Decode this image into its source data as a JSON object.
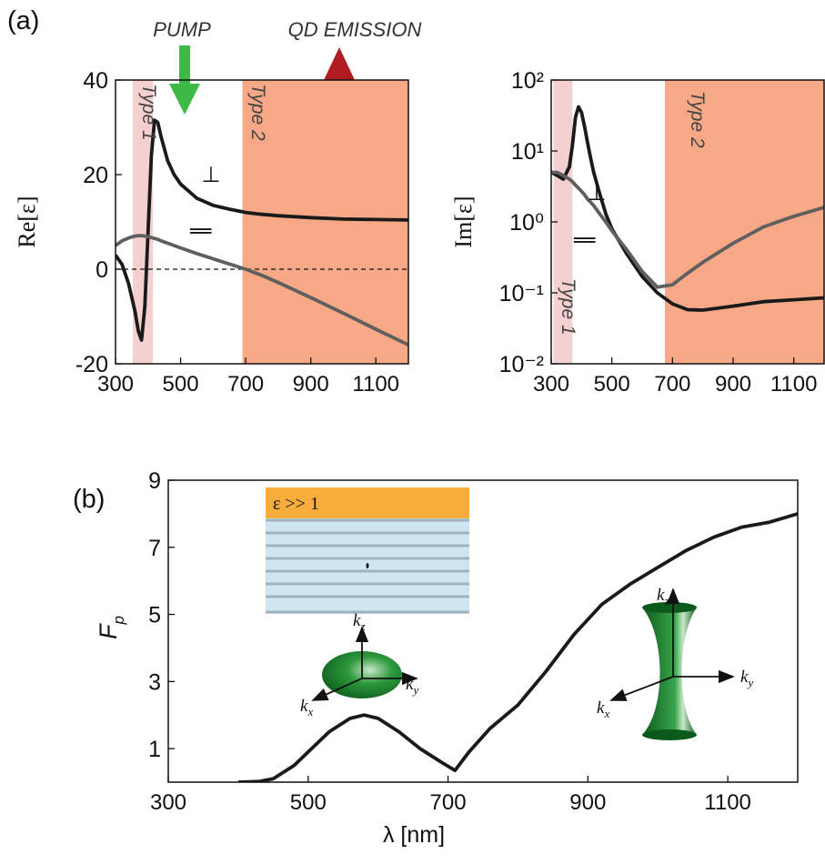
{
  "chart_data": [
    {
      "type": "line",
      "panel_label": "(a)",
      "ylabel": "Re[ε]",
      "annotations": [
        "PUMP",
        "QD EMISSION"
      ],
      "xlim": [
        300,
        1200
      ],
      "xticks": [
        300,
        500,
        700,
        900,
        1100
      ],
      "ylim": [
        -20,
        40
      ],
      "yticks": [
        -20,
        0,
        20,
        40
      ],
      "hline": 0,
      "regions": [
        {
          "label": "Type 1",
          "range": [
            353,
            415
          ],
          "color": "#f4d0d0"
        },
        {
          "label": "Type 2",
          "range": [
            690,
            1200
          ],
          "color": "#f6a887"
        }
      ],
      "x": [
        300,
        320,
        340,
        360,
        370,
        380,
        390,
        400,
        410,
        420,
        430,
        440,
        460,
        480,
        500,
        550,
        600,
        650,
        700,
        750,
        800,
        900,
        1000,
        1100,
        1200
      ],
      "series": [
        {
          "name": "⊥",
          "color": "#1a1a1a",
          "values": [
            3,
            1,
            -3,
            -9,
            -13,
            -15,
            -8,
            8,
            24,
            31.5,
            31,
            28,
            23,
            20,
            18,
            15,
            13.5,
            12.7,
            12,
            11.6,
            11.3,
            10.9,
            10.6,
            10.5,
            10.4
          ]
        },
        {
          "name": "∥",
          "color": "#5f5f5f",
          "values": [
            5,
            6,
            6.6,
            7,
            7.1,
            7.1,
            7,
            6.9,
            6.7,
            6.5,
            6.3,
            6,
            5.5,
            5,
            4.5,
            3.3,
            2.2,
            1.1,
            0,
            -1.3,
            -2.8,
            -6,
            -9.3,
            -12.7,
            -16
          ]
        }
      ]
    },
    {
      "type": "line",
      "ylabel": "Im[ε]",
      "log_y": true,
      "xlim": [
        300,
        1200
      ],
      "xticks": [
        300,
        500,
        700,
        900,
        1100
      ],
      "ylim": [
        0.01,
        100
      ],
      "yticks": [
        {
          "value": 0.01,
          "label": "10⁻²"
        },
        {
          "value": 0.1,
          "label": "10⁻¹"
        },
        {
          "value": 1,
          "label": "10⁰"
        },
        {
          "value": 10,
          "label": "10¹"
        },
        {
          "value": 100,
          "label": "10²"
        }
      ],
      "regions": [
        {
          "label": "Type 1",
          "range": [
            308,
            370
          ],
          "color": "#f4d0d0"
        },
        {
          "label": "Type 2",
          "range": [
            675,
            1200
          ],
          "color": "#f6a887"
        }
      ],
      "x": [
        300,
        320,
        340,
        360,
        370,
        380,
        390,
        400,
        410,
        420,
        430,
        440,
        460,
        480,
        500,
        550,
        600,
        650,
        700,
        750,
        800,
        900,
        1000,
        1100,
        1200
      ],
      "series": [
        {
          "name": "⊥",
          "color": "#1a1a1a",
          "values": [
            5,
            4.5,
            4,
            6,
            12,
            30,
            42,
            35,
            22,
            13,
            8,
            5,
            2.5,
            1.3,
            0.8,
            0.35,
            0.17,
            0.1,
            0.07,
            0.058,
            0.057,
            0.065,
            0.075,
            0.08,
            0.085
          ]
        },
        {
          "name": "∥",
          "color": "#5f5f5f",
          "values": [
            5,
            5,
            4.5,
            4,
            3.7,
            3.3,
            3,
            2.7,
            2.4,
            2.1,
            1.9,
            1.7,
            1.3,
            1,
            0.75,
            0.4,
            0.2,
            0.12,
            0.13,
            0.19,
            0.27,
            0.5,
            0.85,
            1.2,
            1.6
          ]
        }
      ]
    },
    {
      "type": "line",
      "panel_label": "(b)",
      "xlabel": "λ [nm]",
      "ylabel": "F",
      "ylabel_sub": "p",
      "xlim": [
        300,
        1200
      ],
      "xticks": [
        300,
        500,
        700,
        900,
        1100
      ],
      "ylim": [
        0,
        9
      ],
      "yticks": [
        1,
        3,
        5,
        7,
        9
      ],
      "x": [
        400,
        430,
        450,
        480,
        500,
        530,
        560,
        580,
        600,
        630,
        660,
        690,
        710,
        730,
        760,
        800,
        840,
        880,
        920,
        960,
        1000,
        1040,
        1080,
        1120,
        1160,
        1200
      ],
      "series": [
        {
          "name": "F",
          "color": "#1a1a1a",
          "values": [
            0,
            0.02,
            0.1,
            0.5,
            0.9,
            1.5,
            1.9,
            2.0,
            1.9,
            1.5,
            1.0,
            0.6,
            0.35,
            0.9,
            1.6,
            2.3,
            3.3,
            4.4,
            5.3,
            5.9,
            6.4,
            6.9,
            7.3,
            7.6,
            7.75,
            8.0
          ]
        }
      ]
    }
  ],
  "inset": {
    "layer_label": "ε >> 1",
    "ellipsoid_axes": [
      {
        "k": "k",
        "sub": "z"
      },
      {
        "k": "k",
        "sub": "y"
      },
      {
        "k": "k",
        "sub": "x"
      }
    ],
    "hyperboloid_axes": [
      {
        "k": "k",
        "sub": "z"
      },
      {
        "k": "k",
        "sub": "y"
      },
      {
        "k": "k",
        "sub": "x"
      }
    ]
  }
}
